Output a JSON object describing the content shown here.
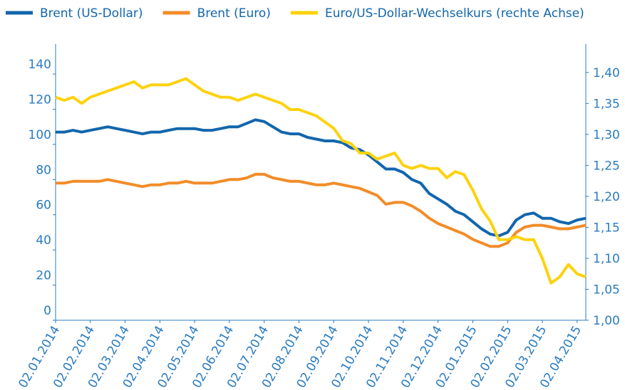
{
  "chart_data": {
    "type": "line",
    "categories": [
      "02.01.2014",
      null,
      null,
      null,
      "02.02.2014",
      null,
      null,
      null,
      "02.03.2014",
      null,
      null,
      null,
      "02.04.2014",
      null,
      null,
      null,
      "02.05.2014",
      null,
      null,
      null,
      "02.06.2014",
      null,
      null,
      null,
      "02.07.2014",
      null,
      null,
      null,
      "02.08.2014",
      null,
      null,
      null,
      "02.09.2014",
      null,
      null,
      null,
      "02.10.2014",
      null,
      null,
      null,
      "02.11.2014",
      null,
      null,
      null,
      "02.12.2014",
      null,
      null,
      null,
      "02.01.2015",
      null,
      null,
      null,
      "02.02.2015",
      null,
      null,
      null,
      "02.03.2015",
      null,
      null,
      null,
      "02.04.2015",
      null
    ],
    "series": [
      {
        "name": "Brent (US-Dollar)",
        "color": "#1266ac",
        "values": [
          107,
          107,
          108,
          107,
          108,
          109,
          110,
          109,
          108,
          107,
          106,
          107,
          107,
          108,
          109,
          109,
          109,
          108,
          108,
          109,
          110,
          110,
          112,
          114,
          113,
          110,
          107,
          106,
          106,
          104,
          103,
          102,
          102,
          101,
          98,
          97,
          94,
          90,
          86,
          86,
          84,
          80,
          78,
          72,
          69,
          66,
          62,
          60,
          56,
          52,
          49,
          48,
          50,
          57,
          60,
          61,
          58,
          58,
          56,
          55,
          57,
          58
        ]
      },
      {
        "name": "Brent (Euro)",
        "color": "#f28c28",
        "values": [
          78,
          78,
          79,
          79,
          79,
          79,
          80,
          79,
          78,
          77,
          76,
          77,
          77,
          78,
          78,
          79,
          78,
          78,
          78,
          79,
          80,
          80,
          81,
          83,
          83,
          81,
          80,
          79,
          79,
          78,
          77,
          77,
          78,
          77,
          76,
          75,
          73,
          71,
          66,
          67,
          67,
          65,
          62,
          58,
          55,
          53,
          51,
          49,
          46,
          44,
          42,
          42,
          44,
          50,
          53,
          54,
          54,
          53,
          52,
          52,
          53,
          54
        ]
      },
      {
        "name": "Euro/US-Dollar-Wechselkurs (rechte Achse)",
        "color": "#fdd20e",
        "axis": "y2",
        "values": [
          1.36,
          1.355,
          1.36,
          1.35,
          1.36,
          1.365,
          1.37,
          1.375,
          1.38,
          1.385,
          1.375,
          1.38,
          1.38,
          1.38,
          1.385,
          1.39,
          1.38,
          1.37,
          1.365,
          1.36,
          1.36,
          1.355,
          1.36,
          1.365,
          1.36,
          1.355,
          1.35,
          1.34,
          1.34,
          1.335,
          1.33,
          1.32,
          1.31,
          1.29,
          1.285,
          1.27,
          1.27,
          1.26,
          1.265,
          1.27,
          1.25,
          1.245,
          1.25,
          1.245,
          1.245,
          1.23,
          1.24,
          1.235,
          1.21,
          1.18,
          1.16,
          1.13,
          1.13,
          1.135,
          1.13,
          1.13,
          1.1,
          1.06,
          1.07,
          1.09,
          1.075,
          1.07
        ]
      }
    ],
    "ylim": [
      0,
      155
    ],
    "yticks": [
      0,
      20,
      40,
      60,
      80,
      100,
      120,
      140
    ],
    "y2lim": [
      1.0,
      1.44
    ],
    "y2ticks": [
      {
        "value": 1.0,
        "label": "1,00"
      },
      {
        "value": 1.05,
        "label": "1,05"
      },
      {
        "value": 1.1,
        "label": "1,10"
      },
      {
        "value": 1.15,
        "label": "1,15"
      },
      {
        "value": 1.2,
        "label": "1,20"
      },
      {
        "value": 1.25,
        "label": "1,25"
      },
      {
        "value": 1.3,
        "label": "1,30"
      },
      {
        "value": 1.35,
        "label": "1,35"
      },
      {
        "value": 1.4,
        "label": "1,40"
      }
    ],
    "grid": false,
    "legend": "top"
  }
}
